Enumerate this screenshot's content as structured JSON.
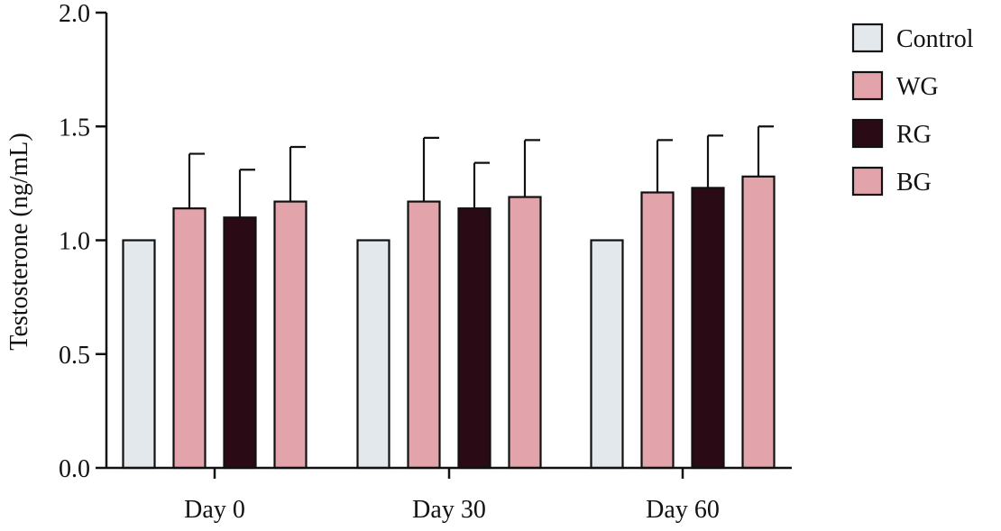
{
  "chart_data": {
    "type": "bar",
    "title": "",
    "xlabel": "",
    "ylabel": "Testosterone (ng/mL)",
    "ylim": [
      0,
      2.0
    ],
    "yticks": [
      "0.0",
      "0.5",
      "1.0",
      "1.5",
      "2.0"
    ],
    "ytick_values": [
      0,
      0.5,
      1.0,
      1.5,
      2.0
    ],
    "categories": [
      "Day 0",
      "Day 30",
      "Day 60"
    ],
    "error_bars": "upper only",
    "grid": false,
    "legend_position": "top-right",
    "series": [
      {
        "name": "Control",
        "color": "#e3e8ec",
        "values": [
          1.0,
          1.0,
          1.0
        ],
        "errors": [
          0,
          0,
          0
        ]
      },
      {
        "name": "WG",
        "color": "#e3a3ab",
        "values": [
          1.14,
          1.17,
          1.21
        ],
        "errors": [
          0.24,
          0.28,
          0.23
        ]
      },
      {
        "name": "RG",
        "color": "#2a0a14",
        "values": [
          1.1,
          1.14,
          1.23
        ],
        "errors": [
          0.21,
          0.2,
          0.23
        ]
      },
      {
        "name": "BG",
        "color": "#e3a3ab",
        "values": [
          1.17,
          1.19,
          1.28
        ],
        "errors": [
          0.24,
          0.25,
          0.22
        ]
      }
    ]
  }
}
